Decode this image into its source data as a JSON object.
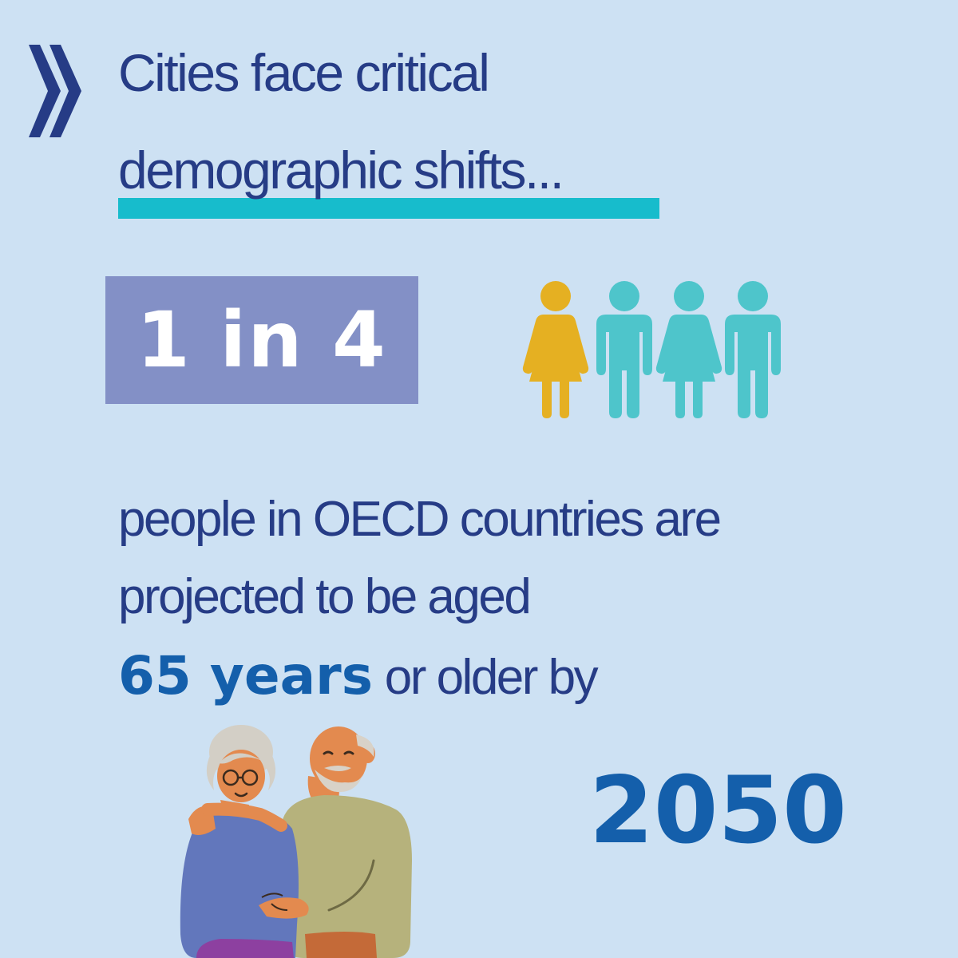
{
  "headline": {
    "line1": "Cities face critical",
    "line2": "demographic shifts..."
  },
  "stat": {
    "ratio": "1 in 4"
  },
  "people_icons": [
    "woman-icon",
    "man-icon",
    "woman-icon",
    "man-icon"
  ],
  "body": {
    "line1": "people in OECD countries are",
    "line2": "projected to be aged",
    "highlight": "65 years",
    "line3_rest": " or older by",
    "year": "2050"
  },
  "illustration": "elderly-couple-illustration",
  "colors": {
    "background": "#cde1f3",
    "headline_text": "#263c86",
    "underline_accent": "#17bccc",
    "stat_box": "#8390c6",
    "stat_text": "#ffffff",
    "highlight_text": "#145fab",
    "person_highlight": "#e5b022",
    "person_default": "#4ec5cb"
  }
}
